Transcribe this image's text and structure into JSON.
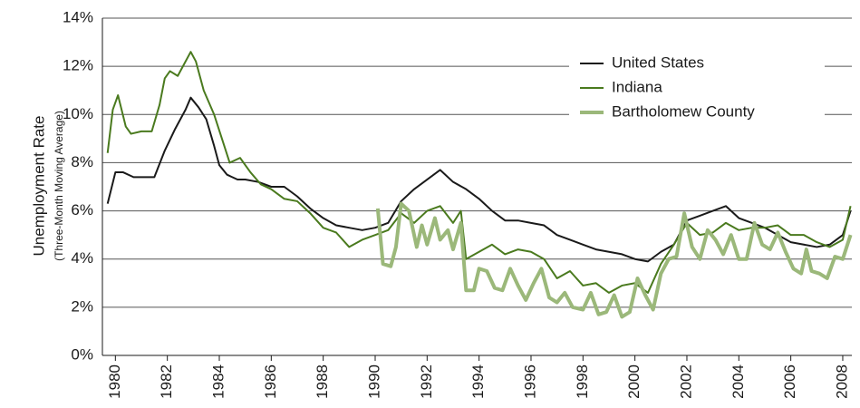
{
  "chart_data": {
    "type": "line",
    "y_label": "Unemployment Rate",
    "y_sublabel": "(Three-Month Moving Average)",
    "xlim": [
      1979.5,
      2008.35
    ],
    "xticks": [
      1980,
      1982,
      1984,
      1986,
      1988,
      1990,
      1992,
      1994,
      1996,
      1998,
      2000,
      2002,
      2004,
      2006,
      2008
    ],
    "ylim": [
      0,
      14
    ],
    "yticks": [
      {
        "value": 0,
        "label": "0%"
      },
      {
        "value": 2,
        "label": "2%"
      },
      {
        "value": 4,
        "label": "4%"
      },
      {
        "value": 6,
        "label": "6%"
      },
      {
        "value": 8,
        "label": "8%"
      },
      {
        "value": 10,
        "label": "10%"
      },
      {
        "value": 12,
        "label": "12%"
      },
      {
        "value": 14,
        "label": "14%"
      }
    ],
    "grid": true,
    "legend": "upper-right",
    "series": [
      {
        "name": "United States",
        "color": "#1a1a1a",
        "width": 2,
        "x": [
          1979.7,
          1980.0,
          1980.3,
          1980.7,
          1981.0,
          1981.5,
          1981.9,
          1982.3,
          1982.7,
          1982.9,
          1983.2,
          1983.5,
          1983.8,
          1984.0,
          1984.3,
          1984.7,
          1985.0,
          1985.5,
          1986.0,
          1986.5,
          1987.0,
          1987.5,
          1988.0,
          1988.5,
          1989.0,
          1989.5,
          1990.0,
          1990.5,
          1991.0,
          1991.5,
          1992.0,
          1992.5,
          1993.0,
          1993.5,
          1994.0,
          1994.5,
          1995.0,
          1995.5,
          1996.0,
          1996.5,
          1997.0,
          1997.5,
          1998.0,
          1998.5,
          1999.0,
          1999.5,
          2000.0,
          2000.5,
          2001.0,
          2001.5,
          2002.0,
          2002.5,
          2003.0,
          2003.5,
          2004.0,
          2004.5,
          2005.0,
          2005.5,
          2006.0,
          2006.5,
          2007.0,
          2007.5,
          2008.0,
          2008.3
        ],
        "values": [
          6.3,
          7.6,
          7.6,
          7.4,
          7.4,
          7.4,
          8.5,
          9.4,
          10.2,
          10.7,
          10.3,
          9.8,
          8.7,
          7.9,
          7.5,
          7.3,
          7.3,
          7.2,
          7.0,
          7.0,
          6.6,
          6.1,
          5.7,
          5.4,
          5.3,
          5.2,
          5.3,
          5.5,
          6.4,
          6.9,
          7.3,
          7.7,
          7.2,
          6.9,
          6.5,
          6.0,
          5.6,
          5.6,
          5.5,
          5.4,
          5.0,
          4.8,
          4.6,
          4.4,
          4.3,
          4.2,
          4.0,
          3.9,
          4.3,
          4.6,
          5.6,
          5.8,
          6.0,
          6.2,
          5.7,
          5.5,
          5.3,
          5.0,
          4.7,
          4.6,
          4.5,
          4.6,
          5.0,
          6.0
        ]
      },
      {
        "name": "Indiana",
        "color": "#4a7a1e",
        "width": 2,
        "x": [
          1979.7,
          1979.9,
          1980.1,
          1980.4,
          1980.6,
          1981.0,
          1981.4,
          1981.7,
          1981.9,
          1982.1,
          1982.4,
          1982.6,
          1982.9,
          1983.1,
          1983.4,
          1983.8,
          1984.1,
          1984.4,
          1984.8,
          1985.2,
          1985.6,
          1986.0,
          1986.5,
          1987.0,
          1987.5,
          1988.0,
          1988.5,
          1989.0,
          1989.5,
          1990.0,
          1990.5,
          1991.0,
          1991.5,
          1992.0,
          1992.5,
          1993.0,
          1993.3,
          1993.5,
          1994.0,
          1994.5,
          1995.0,
          1995.5,
          1996.0,
          1996.5,
          1997.0,
          1997.5,
          1998.0,
          1998.5,
          1999.0,
          1999.5,
          2000.0,
          2000.5,
          2001.0,
          2001.5,
          2002.0,
          2002.5,
          2003.0,
          2003.5,
          2004.0,
          2004.5,
          2005.0,
          2005.5,
          2006.0,
          2006.5,
          2007.0,
          2007.5,
          2008.0,
          2008.3
        ],
        "values": [
          8.4,
          10.2,
          10.8,
          9.5,
          9.2,
          9.3,
          9.3,
          10.4,
          11.5,
          11.8,
          11.6,
          12.0,
          12.6,
          12.2,
          11.0,
          10.0,
          9.0,
          8.0,
          8.2,
          7.6,
          7.1,
          6.9,
          6.5,
          6.4,
          5.9,
          5.3,
          5.1,
          4.5,
          4.8,
          5.0,
          5.2,
          5.9,
          5.5,
          6.0,
          6.2,
          5.5,
          6.0,
          4.0,
          4.3,
          4.6,
          4.2,
          4.4,
          4.3,
          4.0,
          3.2,
          3.5,
          2.9,
          3.0,
          2.6,
          2.9,
          3.0,
          2.6,
          3.8,
          4.6,
          5.5,
          5.0,
          5.1,
          5.5,
          5.2,
          5.3,
          5.3,
          5.4,
          5.0,
          5.0,
          4.7,
          4.5,
          4.8,
          6.2
        ]
      },
      {
        "name": "Bartholomew County",
        "color": "#9bb87a",
        "width": 4,
        "x": [
          1990.1,
          1990.3,
          1990.6,
          1990.8,
          1991.0,
          1991.3,
          1991.6,
          1991.8,
          1992.0,
          1992.3,
          1992.5,
          1992.8,
          1993.0,
          1993.3,
          1993.5,
          1993.8,
          1994.0,
          1994.3,
          1994.6,
          1994.9,
          1995.2,
          1995.5,
          1995.8,
          1996.1,
          1996.4,
          1996.7,
          1997.0,
          1997.3,
          1997.6,
          1998.0,
          1998.3,
          1998.6,
          1998.9,
          1999.2,
          1999.5,
          1999.8,
          2000.1,
          2000.4,
          2000.7,
          2001.0,
          2001.3,
          2001.6,
          2001.9,
          2002.2,
          2002.5,
          2002.8,
          2003.1,
          2003.4,
          2003.7,
          2004.0,
          2004.3,
          2004.6,
          2004.9,
          2005.2,
          2005.5,
          2005.8,
          2006.1,
          2006.4,
          2006.6,
          2006.8,
          2007.1,
          2007.4,
          2007.7,
          2008.0,
          2008.3
        ],
        "values": [
          6.1,
          3.8,
          3.7,
          4.5,
          6.3,
          6.0,
          4.5,
          5.4,
          4.6,
          5.7,
          4.8,
          5.2,
          4.4,
          5.5,
          2.7,
          2.7,
          3.6,
          3.5,
          2.8,
          2.7,
          3.6,
          2.9,
          2.3,
          3.0,
          3.6,
          2.4,
          2.2,
          2.6,
          2.0,
          1.9,
          2.6,
          1.7,
          1.8,
          2.5,
          1.6,
          1.8,
          3.2,
          2.5,
          1.9,
          3.4,
          4.0,
          4.1,
          5.9,
          4.5,
          4.0,
          5.2,
          4.8,
          4.2,
          5.0,
          4.0,
          4.0,
          5.5,
          4.6,
          4.4,
          5.1,
          4.3,
          3.6,
          3.4,
          4.4,
          3.5,
          3.4,
          3.2,
          4.1,
          4.0,
          5.0
        ]
      }
    ]
  }
}
